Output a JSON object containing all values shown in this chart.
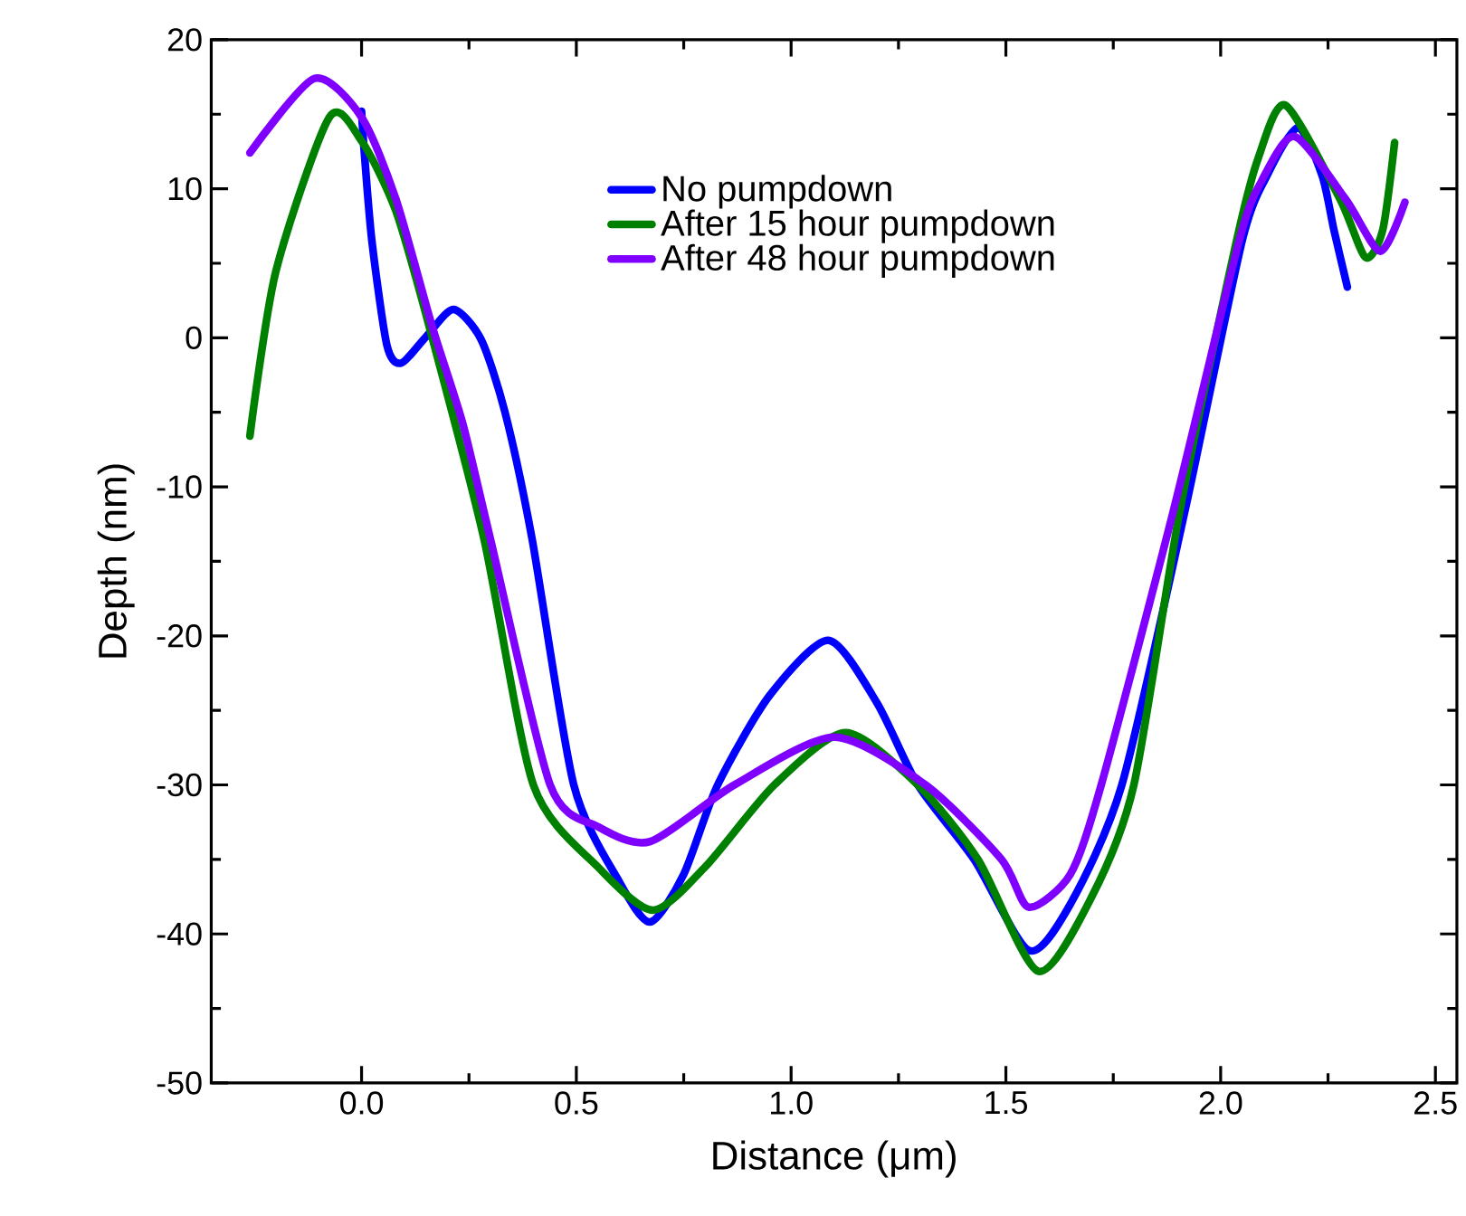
{
  "chart_data": {
    "type": "line",
    "xlabel": "Distance (μm)",
    "ylabel": "Depth (nm)",
    "xlim": [
      -0.35,
      2.55
    ],
    "ylim": [
      -50,
      20
    ],
    "xticks": [
      {
        "value": 0,
        "label": "0.0"
      },
      0.5,
      {
        "value": 1,
        "label": "1.0"
      },
      1.5,
      {
        "value": 2,
        "label": "2.0"
      },
      2.5
    ],
    "yticks": [
      -50,
      -40,
      -30,
      -20,
      -10,
      0,
      10,
      20
    ],
    "legend": "top",
    "line_style": "solid",
    "series": [
      {
        "name": "No pumpdown",
        "color": "#0000ff",
        "x": [
          0,
          0.006,
          0.024,
          0.059,
          0.092,
          0.151,
          0.214,
          0.278,
          0.334,
          0.397,
          0.494,
          0.6,
          0.672,
          0.75,
          0.829,
          0.95,
          1.087,
          1.2,
          1.295,
          1.426,
          1.553,
          1.65,
          1.77,
          1.917,
          2.05,
          2.11,
          2.18,
          2.236,
          2.264,
          2.295
        ],
        "values": [
          15.2,
          12.6,
          6.5,
          -0.5,
          -1.7,
          0.1,
          1.9,
          -0.1,
          -5,
          -13.5,
          -30,
          -36.5,
          -39.2,
          -36,
          -30,
          -24,
          -20.3,
          -24.5,
          -30,
          -35,
          -41.1,
          -38,
          -30,
          -11.6,
          6.5,
          11,
          14.1,
          10.9,
          7.2,
          3.4
        ]
      },
      {
        "name": "After 15 hour pumpdown",
        "color": "#008000",
        "x": [
          -0.26,
          -0.2,
          -0.075,
          0,
          0.08,
          0.158,
          0.285,
          0.4,
          0.55,
          0.678,
          0.8,
          0.961,
          1.127,
          1.295,
          1.435,
          1.575,
          1.7,
          1.798,
          1.905,
          2.037,
          2.088,
          2.151,
          2.278,
          2.337,
          2.377,
          2.405
        ],
        "values": [
          -6.6,
          4.4,
          14.8,
          13.2,
          8.5,
          0.7,
          -13.5,
          -30,
          -35.5,
          -38.4,
          -35.5,
          -30,
          -26.5,
          -30,
          -35,
          -42.5,
          -37.5,
          -30,
          -11.6,
          6.5,
          12.1,
          15.6,
          9.3,
          5.4,
          7.2,
          13.1
        ]
      },
      {
        "name": "After 48 hour pumpdown",
        "color": "#8000ff",
        "x": [
          -0.26,
          -0.11,
          0,
          0.08,
          0.165,
          0.235,
          0.3,
          0.439,
          0.55,
          0.672,
          0.868,
          1.1,
          1.313,
          1.49,
          1.553,
          1.65,
          1.722,
          1.89,
          2.043,
          2.095,
          2.172,
          2.291,
          2.372,
          2.429
        ],
        "values": [
          12.4,
          17.4,
          14.8,
          9.3,
          0.7,
          -5.7,
          -13.5,
          -30,
          -32.8,
          -33.8,
          -30,
          -26.8,
          -30,
          -35,
          -38.2,
          -36,
          -30,
          -11.6,
          6.5,
          10.5,
          13.5,
          9.3,
          5.8,
          9.1
        ]
      }
    ]
  }
}
